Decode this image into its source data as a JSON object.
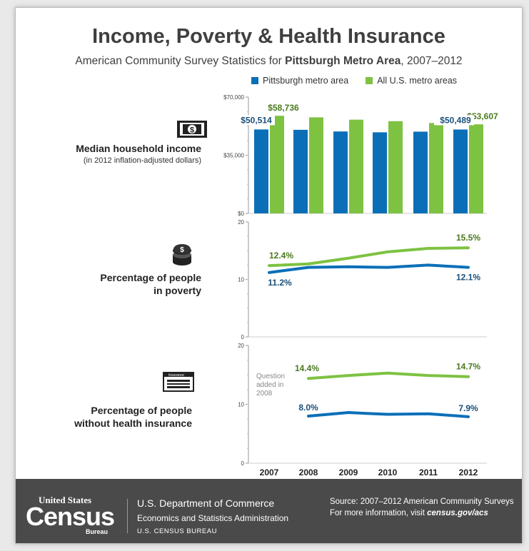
{
  "header": {
    "title": "Income, Poverty & Health Insurance",
    "subtitle_pre": "American Community Survey Statistics for ",
    "subtitle_bold": "Pittsburgh Metro Area",
    "subtitle_post": ", 2007–2012"
  },
  "legend": {
    "pittsburgh": "Pittsburgh metro area",
    "us": "All U.S. metro areas"
  },
  "colors": {
    "pittsburgh": "#0b6fb8",
    "us": "#7ec242",
    "pittsburgh_text": "#1a4f7a",
    "us_text": "#4a7a1e"
  },
  "sections": {
    "income": {
      "title": "Median household income",
      "subtitle": "(in 2012 inflation-adjusted dollars)",
      "icon": "dollar-bill-icon"
    },
    "poverty": {
      "title_line1": "Percentage of people",
      "title_line2": "in poverty",
      "icon": "coins-icon"
    },
    "insurance": {
      "title_line1": "Percentage of people",
      "title_line2": "without health insurance",
      "icon": "insurance-card-icon",
      "card_text": "Insurance",
      "note": [
        "Question",
        "added in",
        "2008"
      ]
    }
  },
  "chart_data": [
    {
      "type": "bar",
      "categories": [
        "2007",
        "2008",
        "2009",
        "2010",
        "2011",
        "2012"
      ],
      "series": [
        {
          "name": "Pittsburgh metro area",
          "values": [
            50514,
            50300,
            49300,
            48800,
            49200,
            50489
          ]
        },
        {
          "name": "All U.S. metro areas",
          "values": [
            58736,
            57800,
            56400,
            55500,
            54400,
            53607
          ]
        }
      ],
      "ylim": [
        0,
        70000
      ],
      "yticks": [
        0,
        35000,
        70000
      ],
      "ytick_labels": [
        "$0",
        "$35,000",
        "$70,000"
      ],
      "data_labels": {
        "pittsburgh": [
          "$50,514",
          "",
          "",
          "",
          "",
          "$50,489"
        ],
        "us": [
          "$58,736",
          "",
          "",
          "",
          "",
          "$53,607"
        ]
      }
    },
    {
      "type": "line",
      "categories": [
        "2007",
        "2008",
        "2009",
        "2010",
        "2011",
        "2012"
      ],
      "series": [
        {
          "name": "Pittsburgh metro area",
          "values": [
            11.2,
            12.1,
            12.2,
            12.1,
            12.5,
            12.1
          ]
        },
        {
          "name": "All U.S. metro areas",
          "values": [
            12.4,
            12.7,
            13.7,
            14.8,
            15.4,
            15.5
          ]
        }
      ],
      "ylim": [
        0,
        20
      ],
      "yticks": [
        0,
        10,
        20
      ],
      "data_labels": {
        "pittsburgh": [
          "11.2%",
          "",
          "",
          "",
          "",
          "12.1%"
        ],
        "us": [
          "12.4%",
          "",
          "",
          "",
          "",
          "15.5%"
        ]
      }
    },
    {
      "type": "line",
      "categories": [
        "2007",
        "2008",
        "2009",
        "2010",
        "2011",
        "2012"
      ],
      "series": [
        {
          "name": "Pittsburgh metro area",
          "values": [
            null,
            8.0,
            8.6,
            8.3,
            8.4,
            7.9
          ]
        },
        {
          "name": "All U.S. metro areas",
          "values": [
            null,
            14.4,
            14.9,
            15.3,
            14.9,
            14.7
          ]
        }
      ],
      "ylim": [
        0,
        20
      ],
      "yticks": [
        0,
        10,
        20
      ],
      "data_labels": {
        "pittsburgh": [
          "",
          "8.0%",
          "",
          "",
          "",
          "7.9%"
        ],
        "us": [
          "",
          "14.4%",
          "",
          "",
          "",
          "14.7%"
        ]
      }
    }
  ],
  "footer": {
    "logo_us": "United States",
    "logo_census": "Census",
    "logo_bureau": "Bureau",
    "dept_line1": "U.S. Department of Commerce",
    "dept_line2": "Economics and Statistics Administration",
    "dept_line3": "U.S. CENSUS BUREAU",
    "source_line1": "Source: 2007–2012 American Community Surveys",
    "source_pre": "For more information, visit ",
    "source_link": "census.gov/acs"
  }
}
